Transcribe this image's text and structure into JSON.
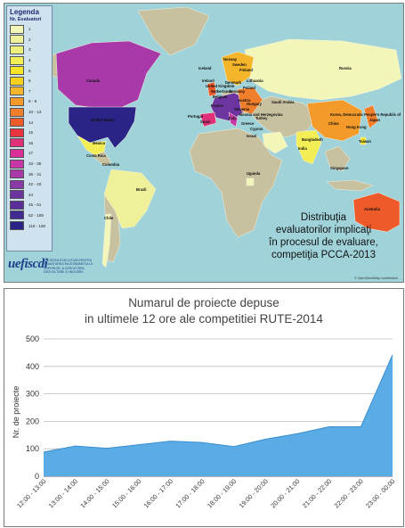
{
  "map": {
    "legend_title": "Legenda",
    "legend_subtitle": "Nr. Evaluatori",
    "legend": [
      {
        "label": "1",
        "color": "#f3f6b9"
      },
      {
        "label": "2",
        "color": "#eef199"
      },
      {
        "label": "3",
        "color": "#ecef7c"
      },
      {
        "label": "4",
        "color": "#f3ee55"
      },
      {
        "label": "5",
        "color": "#f7e52a"
      },
      {
        "label": "6",
        "color": "#f7d21c"
      },
      {
        "label": "7",
        "color": "#f5b52a"
      },
      {
        "label": "8 - 9",
        "color": "#f39a2a"
      },
      {
        "label": "10 - 13",
        "color": "#f07e2a"
      },
      {
        "label": "14",
        "color": "#ee5a2a"
      },
      {
        "label": "15",
        "color": "#e9343f"
      },
      {
        "label": "16",
        "color": "#e0307a"
      },
      {
        "label": "17",
        "color": "#d92f96"
      },
      {
        "label": "33 - 35",
        "color": "#c837a8"
      },
      {
        "label": "36 - 41",
        "color": "#a939a8"
      },
      {
        "label": "42 - 43",
        "color": "#8a3aa6"
      },
      {
        "label": "44",
        "color": "#6d35a0"
      },
      {
        "label": "45 - 61",
        "color": "#5a2f9a"
      },
      {
        "label": "62 - 109",
        "color": "#412a91"
      },
      {
        "label": "110 - 180",
        "color": "#2b2487"
      }
    ],
    "caption_lines": [
      "Distribuţia",
      "evaluatorilor implicaţi",
      "în procesul de evaluare,",
      "competiţia PCCA-2013"
    ],
    "logo_mark": "uefiscdi",
    "logo_text": "UNITATEA EXECUTIVĂ PENTRU FINANȚAREA ÎNVĂȚĂMÂNTULUI SUPERIOR, A CERCETĂRII, DEZVOLTĂRII ȘI INOVĂRII",
    "credit": "© OpenStreetMap contributors",
    "country_labels": {
      "canada": "Canada",
      "usa": "United States",
      "mexico": "Mexico",
      "costa_rica": "Costa Rica",
      "colombia": "Colombia",
      "brazil": "Brazil",
      "chile": "Chile",
      "iceland": "Iceland",
      "norway": "Norway",
      "sweden": "Sweden",
      "finland": "Finland",
      "ireland": "Ireland",
      "uk": "United Kingdom",
      "denmark": "Denmark",
      "netherlands": "Netherlands",
      "belgium": "Belgium",
      "germany": "Germany",
      "poland": "Poland",
      "lithuania": "Lithuania",
      "france": "France",
      "portugal": "Portugal",
      "spain": "Spain",
      "italy": "Italy",
      "austria": "Austria",
      "hungary": "Hungary",
      "slovenia": "Slovenia",
      "greece": "Greece",
      "turkey": "Turkey",
      "cyprus": "Cyprus",
      "israel": "Israel",
      "bosnia": "Bosnia and Herzegovina",
      "russia": "Russia",
      "saudi": "Saudi Arabia",
      "korea": "Korea, Democratic People's Republic of",
      "china": "China",
      "japan": "Japan",
      "hongkong": "Hong Kong",
      "taiwan": "Taiwan",
      "bangladesh": "Bangladesh",
      "india": "India",
      "singapore": "Singapore",
      "uganda": "Uganda",
      "australia": "Australia"
    }
  },
  "chart_data": {
    "type": "area",
    "title_lines": [
      "Numarul de proiecte depuse",
      "in ultimele 12 ore ale competitiei RUTE-2014"
    ],
    "ylabel": "Nr. de proiecte",
    "xlabel": "",
    "ylim": [
      0,
      500
    ],
    "yticks": [
      0,
      100,
      200,
      300,
      400,
      500
    ],
    "grid": true,
    "categories": [
      "12:00 - 13:00",
      "13:00 - 14:00",
      "14:00 - 15:00",
      "15:00 - 16:00",
      "16:00 - 17:00",
      "17:00 - 18:00",
      "18:00 - 19:00",
      "19:00 - 20:00",
      "20:00 - 21:00",
      "21:00 - 22:00",
      "22:00 - 23:00",
      "23:00 - 00:00"
    ],
    "values": [
      88,
      110,
      102,
      115,
      128,
      123,
      108,
      135,
      155,
      180,
      180,
      442
    ],
    "fill_color": "#5aace4",
    "line_color": "#3a8ed0"
  }
}
